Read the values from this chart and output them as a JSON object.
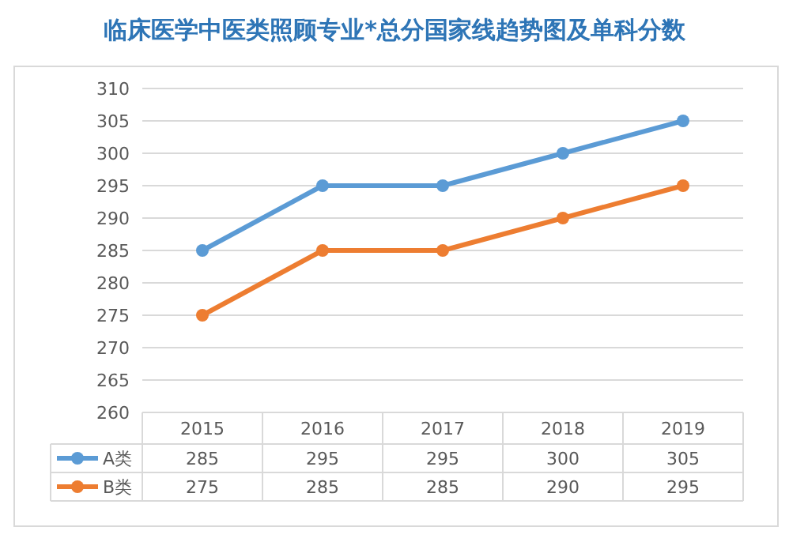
{
  "chart_data": {
    "type": "line",
    "title": "临床医学中医类照顾专业*总分国家线趋势图及单科分数",
    "categories": [
      "2015",
      "2016",
      "2017",
      "2018",
      "2019"
    ],
    "series": [
      {
        "name": "A类",
        "color": "#5b9bd5",
        "values": [
          285,
          295,
          295,
          300,
          305
        ]
      },
      {
        "name": "B类",
        "color": "#ed7d31",
        "values": [
          275,
          285,
          285,
          290,
          295
        ]
      }
    ],
    "ylim": [
      260,
      310
    ],
    "yticks": [
      260,
      265,
      270,
      275,
      280,
      285,
      290,
      295,
      300,
      305,
      310
    ],
    "grid": "y",
    "marker": "circle",
    "data_labels": true,
    "legend": "bottom"
  }
}
